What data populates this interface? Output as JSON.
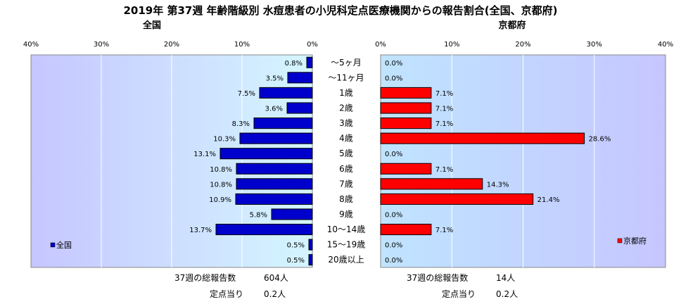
{
  "title": "2019年 第37週 年齢階級別 水痘患者の小児科定点医療機関からの報告割合(全国、京都府)",
  "chart_data": [
    {
      "type": "bar",
      "orientation": "horizontal",
      "title": "全国",
      "categories": [
        "～5ヶ月",
        "～11ヶ月",
        "1歳",
        "2歳",
        "3歳",
        "4歳",
        "5歳",
        "6歳",
        "7歳",
        "8歳",
        "9歳",
        "10～14歳",
        "15～19歳",
        "20歳以上"
      ],
      "series": [
        {
          "name": "全国",
          "color": "#0000cc",
          "values": [
            0.8,
            3.5,
            7.5,
            3.6,
            8.3,
            10.3,
            13.1,
            10.8,
            10.8,
            10.9,
            5.8,
            13.7,
            0.5,
            0.5
          ],
          "labels": [
            "0.8%",
            "3.5%",
            "7.5%",
            "3.6%",
            "8.3%",
            "10.3%",
            "13.1%",
            "10.8%",
            "10.8%",
            "10.9%",
            "5.8%",
            "13.7%",
            "0.5%",
            "0.5%"
          ]
        }
      ],
      "xlim": [
        0,
        40
      ],
      "direction": "reversed",
      "ticks": [
        "40%",
        "30%",
        "20%",
        "10%",
        "0%"
      ],
      "grid": true,
      "legend": "bottom-left",
      "footer": [
        {
          "label": "37週の総報告数",
          "value": "604人"
        },
        {
          "label": "定点当り",
          "value": "0.2人"
        }
      ]
    },
    {
      "type": "bar",
      "orientation": "horizontal",
      "title": "京都府",
      "categories": [
        "～5ヶ月",
        "～11ヶ月",
        "1歳",
        "2歳",
        "3歳",
        "4歳",
        "5歳",
        "6歳",
        "7歳",
        "8歳",
        "9歳",
        "10～14歳",
        "15～19歳",
        "20歳以上"
      ],
      "series": [
        {
          "name": "京都府",
          "color": "#ff0000",
          "values": [
            0.0,
            0.0,
            7.1,
            7.1,
            7.1,
            28.6,
            0.0,
            7.1,
            14.3,
            21.4,
            0.0,
            7.1,
            0.0,
            0.0
          ],
          "labels": [
            "0.0%",
            "0.0%",
            "7.1%",
            "7.1%",
            "7.1%",
            "28.6%",
            "0.0%",
            "7.1%",
            "14.3%",
            "21.4%",
            "0.0%",
            "7.1%",
            "0.0%",
            "0.0%"
          ]
        }
      ],
      "xlim": [
        0,
        40
      ],
      "direction": "normal",
      "ticks": [
        "0%",
        "10%",
        "20%",
        "30%",
        "40%"
      ],
      "grid": true,
      "legend": "bottom-right",
      "footer": [
        {
          "label": "37週の総報告数",
          "value": "14人"
        },
        {
          "label": "定点当り",
          "value": "0.2人"
        }
      ]
    }
  ]
}
